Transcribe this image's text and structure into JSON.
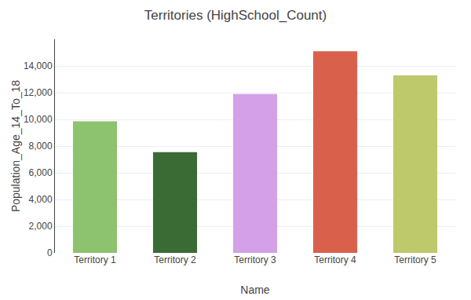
{
  "chart_data": {
    "type": "bar",
    "title": "Territories (HighSchool_Count)",
    "xlabel": "Name",
    "ylabel": "Population_Age_14_To_18",
    "categories": [
      "Territory 1",
      "Territory 2",
      "Territory 3",
      "Territory 4",
      "Territory 5"
    ],
    "values": [
      9850,
      7550,
      11900,
      15100,
      13300
    ],
    "colors": [
      "#8DC26F",
      "#3A6B35",
      "#D4A0E8",
      "#D9614C",
      "#BDC96A"
    ],
    "ylim": [
      0,
      16000
    ],
    "yticks": [
      0,
      {
        "value": 2000,
        "label": "2,000"
      },
      {
        "value": 4000,
        "label": "4,000"
      },
      {
        "value": 6000,
        "label": "6,000"
      },
      {
        "value": 8000,
        "label": "8,000"
      },
      {
        "value": 10000,
        "label": "10,000"
      },
      {
        "value": 12000,
        "label": "12,000"
      },
      {
        "value": 14000,
        "label": "14,000"
      }
    ],
    "grid": true
  }
}
